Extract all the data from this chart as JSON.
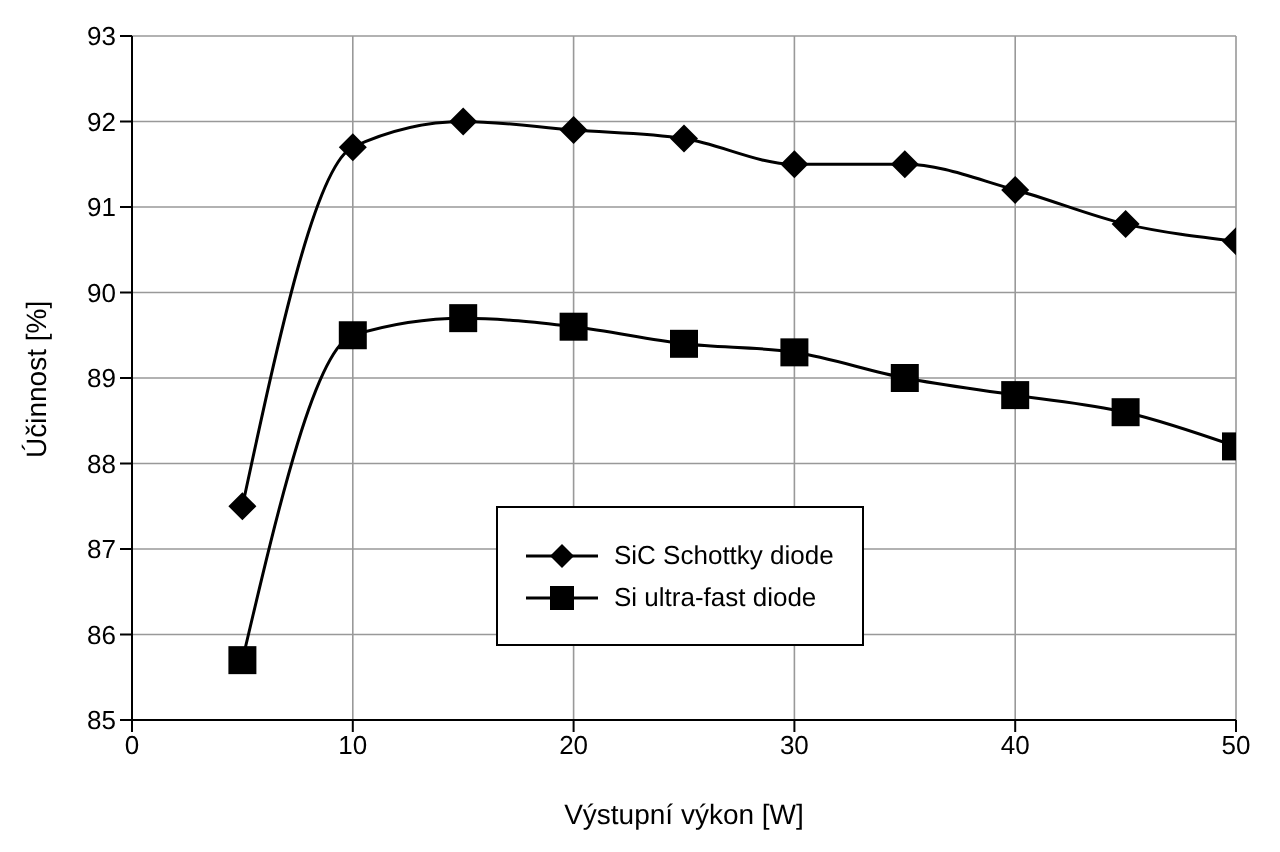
{
  "chart_data": {
    "type": "line",
    "xlabel": "Výstupní výkon [W]",
    "ylabel": "Účinnost [%]",
    "x": [
      5,
      10,
      15,
      20,
      25,
      30,
      35,
      40,
      45,
      50
    ],
    "series": [
      {
        "name": "SiC Schottky diode",
        "color": "#000000",
        "marker": "diamond",
        "values": [
          87.5,
          91.7,
          92.0,
          91.9,
          91.8,
          91.5,
          91.5,
          91.2,
          90.8,
          90.6
        ]
      },
      {
        "name": "Si ultra-fast diode",
        "color": "#000000",
        "marker": "square",
        "values": [
          85.7,
          89.5,
          89.7,
          89.6,
          89.4,
          89.3,
          89.0,
          88.8,
          88.6,
          88.2
        ]
      }
    ],
    "xlim": [
      0,
      50
    ],
    "xticks": [
      0,
      10,
      20,
      30,
      40,
      50
    ],
    "ylim": [
      85,
      93
    ],
    "yticks": [
      85,
      86,
      87,
      88,
      89,
      90,
      91,
      92,
      93
    ],
    "grid": true,
    "legend": "bottom",
    "line_style": "solid"
  }
}
